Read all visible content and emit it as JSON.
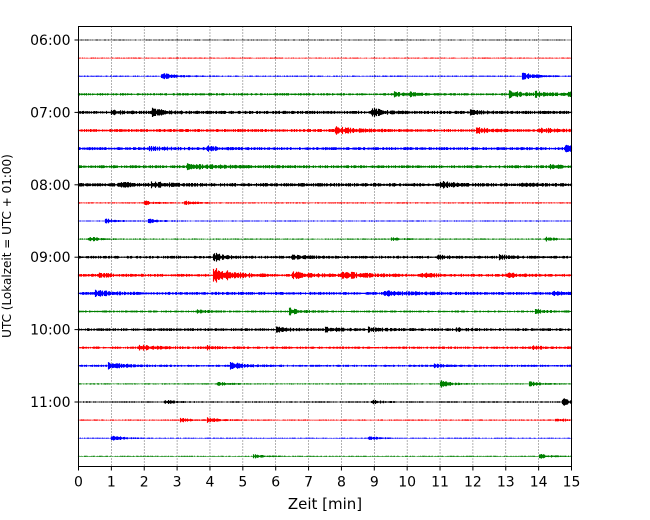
{
  "chart_data": {
    "type": "line",
    "title": "",
    "xlabel": "Zeit  [min]",
    "ylabel": "UTC (Lokalzeit = UTC + 01:00)",
    "xlim": [
      0,
      15
    ],
    "xticks": [
      0,
      1,
      2,
      3,
      4,
      5,
      6,
      7,
      8,
      9,
      10,
      11,
      12,
      13,
      14,
      15
    ],
    "x_gridlines": "dotted at every minute",
    "yticks": [
      "06:00",
      "07:00",
      "08:00",
      "09:00",
      "10:00",
      "11:00"
    ],
    "trace_interval_min": 15,
    "trace_colors": [
      "#000000",
      "#ff0000",
      "#0000ff",
      "#008000"
    ],
    "series": [
      {
        "start": "06:00",
        "noise": 0.5,
        "events": []
      },
      {
        "start": "06:15",
        "noise": 0.6,
        "events": []
      },
      {
        "start": "06:30",
        "noise": 0.7,
        "events": [
          [
            2.5,
            3.2,
            0.4
          ],
          [
            13.5,
            3.5,
            0.4
          ]
        ]
      },
      {
        "start": "06:45",
        "noise": 1.2,
        "events": [
          [
            9.6,
            2.0,
            0.3
          ],
          [
            10.1,
            1.5,
            0.3
          ],
          [
            13.1,
            3.0,
            0.5
          ],
          [
            13.9,
            2.0,
            0.5
          ],
          [
            14.9,
            2.0,
            0.3
          ]
        ]
      },
      {
        "start": "07:00",
        "noise": 1.6,
        "events": [
          [
            1.0,
            2.0,
            0.3
          ],
          [
            2.2,
            3.5,
            0.4
          ],
          [
            8.9,
            4.5,
            0.3
          ],
          [
            11.9,
            2.0,
            0.3
          ]
        ]
      },
      {
        "start": "07:15",
        "noise": 1.5,
        "events": [
          [
            7.8,
            3.5,
            0.5
          ],
          [
            12.1,
            3.0,
            0.3
          ],
          [
            14.0,
            2.0,
            0.6
          ]
        ]
      },
      {
        "start": "07:30",
        "noise": 1.5,
        "events": [
          [
            2.1,
            1.5,
            0.6
          ],
          [
            3.9,
            2.0,
            0.3
          ],
          [
            14.8,
            3.0,
            0.3
          ]
        ]
      },
      {
        "start": "07:45",
        "noise": 1.5,
        "events": [
          [
            3.3,
            2.0,
            1.0
          ],
          [
            14.3,
            1.5,
            0.4
          ]
        ]
      },
      {
        "start": "08:00",
        "noise": 1.8,
        "events": [
          [
            1.2,
            2.0,
            0.4
          ],
          [
            2.2,
            2.5,
            0.4
          ],
          [
            11.0,
            4.0,
            0.3
          ],
          [
            13.5,
            1.5,
            0.3
          ]
        ]
      },
      {
        "start": "08:15",
        "noise": 0.7,
        "events": [
          [
            2.0,
            2.0,
            0.3
          ],
          [
            3.2,
            2.0,
            0.3
          ]
        ]
      },
      {
        "start": "08:30",
        "noise": 0.6,
        "events": [
          [
            0.8,
            2.5,
            0.3
          ],
          [
            2.1,
            2.5,
            0.3
          ]
        ]
      },
      {
        "start": "08:45",
        "noise": 0.7,
        "events": [
          [
            0.3,
            2.5,
            0.3
          ],
          [
            9.5,
            1.5,
            0.3
          ],
          [
            14.2,
            2.0,
            0.3
          ]
        ]
      },
      {
        "start": "09:00",
        "noise": 1.4,
        "events": [
          [
            4.1,
            4.5,
            0.3
          ],
          [
            6.5,
            1.5,
            0.5
          ],
          [
            10.9,
            2.0,
            0.3
          ],
          [
            12.8,
            2.0,
            0.3
          ]
        ]
      },
      {
        "start": "09:15",
        "noise": 1.5,
        "events": [
          [
            0.6,
            2.0,
            0.3
          ],
          [
            4.1,
            9.0,
            0.5
          ],
          [
            6.5,
            3.0,
            0.6
          ],
          [
            8.0,
            3.0,
            0.7
          ],
          [
            10.4,
            2.0,
            0.4
          ],
          [
            13.0,
            2.0,
            0.4
          ]
        ]
      },
      {
        "start": "09:30",
        "noise": 1.5,
        "events": [
          [
            0.5,
            3.0,
            0.4
          ],
          [
            9.3,
            2.0,
            0.8
          ],
          [
            14.4,
            2.0,
            0.3
          ]
        ]
      },
      {
        "start": "09:45",
        "noise": 1.0,
        "events": [
          [
            3.6,
            2.0,
            0.3
          ],
          [
            6.4,
            3.5,
            0.3
          ],
          [
            13.9,
            2.0,
            0.3
          ]
        ]
      },
      {
        "start": "10:00",
        "noise": 1.4,
        "events": [
          [
            6.0,
            2.0,
            0.4
          ],
          [
            7.5,
            2.0,
            0.4
          ],
          [
            8.8,
            2.0,
            0.4
          ],
          [
            11.5,
            1.5,
            0.3
          ]
        ]
      },
      {
        "start": "10:15",
        "noise": 1.2,
        "events": [
          [
            1.8,
            2.5,
            0.6
          ],
          [
            3.9,
            2.0,
            0.3
          ],
          [
            13.8,
            1.5,
            0.4
          ]
        ]
      },
      {
        "start": "10:30",
        "noise": 1.1,
        "events": [
          [
            0.9,
            3.0,
            0.5
          ],
          [
            4.6,
            3.5,
            0.4
          ],
          [
            10.8,
            1.5,
            0.3
          ]
        ]
      },
      {
        "start": "10:45",
        "noise": 0.7,
        "events": [
          [
            4.2,
            2.0,
            0.3
          ],
          [
            11.0,
            3.5,
            0.3
          ],
          [
            13.7,
            2.5,
            0.3
          ]
        ]
      },
      {
        "start": "11:00",
        "noise": 0.8,
        "events": [
          [
            2.6,
            2.0,
            0.3
          ],
          [
            8.9,
            2.0,
            0.3
          ],
          [
            14.7,
            4.5,
            0.2
          ]
        ]
      },
      {
        "start": "11:15",
        "noise": 0.7,
        "events": [
          [
            3.1,
            2.0,
            0.3
          ],
          [
            3.9,
            3.0,
            0.3
          ],
          [
            14.5,
            2.0,
            0.3
          ]
        ]
      },
      {
        "start": "11:30",
        "noise": 0.6,
        "events": [
          [
            1.0,
            3.0,
            0.3
          ],
          [
            8.8,
            2.5,
            0.3
          ]
        ]
      },
      {
        "start": "11:45",
        "noise": 0.6,
        "events": [
          [
            5.3,
            2.0,
            0.3
          ],
          [
            14.0,
            2.5,
            0.3
          ]
        ]
      }
    ]
  }
}
